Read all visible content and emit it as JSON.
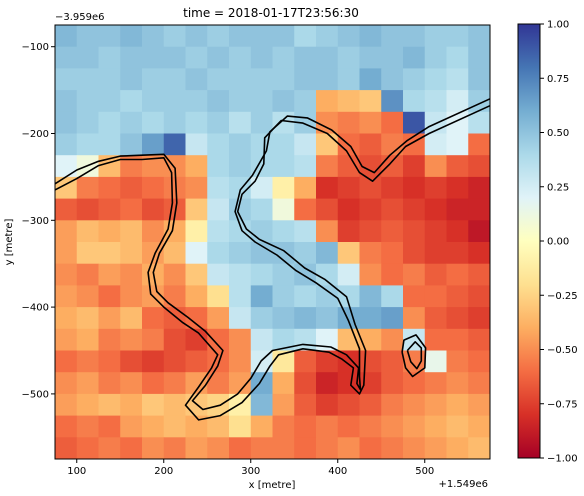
{
  "chart_data": {
    "type": "heatmap",
    "title": "time = 2018-01-17T23:56:30",
    "xlabel": "x [metre]",
    "ylabel": "y [metre]",
    "x_offset_label": "+1.549e6",
    "y_offset_label": "−3.959e6",
    "xlim": [
      75,
      575
    ],
    "ylim": [
      -575,
      -75
    ],
    "x_ticks": [
      100,
      200,
      300,
      400,
      500
    ],
    "y_ticks": [
      -100,
      -200,
      -300,
      -400,
      -500
    ],
    "x_origin": 75,
    "y_origin": -75,
    "cell_size": 25,
    "colorbar": {
      "cmap": "RdYlBu",
      "vmin": -1.0,
      "vmax": 1.0,
      "ticks": [
        -1.0,
        -0.75,
        -0.5,
        -0.25,
        0.0,
        0.25,
        0.5,
        0.75,
        1.0
      ],
      "tick_labels": [
        "−1.00",
        "−0.75",
        "−0.50",
        "−0.25",
        "0.00",
        "0.25",
        "0.50",
        "0.75",
        "1.00"
      ]
    },
    "values": [
      [
        0.55,
        0.5,
        0.5,
        0.55,
        0.5,
        0.45,
        0.5,
        0.45,
        0.5,
        0.5,
        0.5,
        0.4,
        0.45,
        0.5,
        0.55,
        0.5,
        0.5,
        0.45,
        0.45,
        0.5
      ],
      [
        0.5,
        0.5,
        0.45,
        0.5,
        0.5,
        0.5,
        0.45,
        0.5,
        0.45,
        0.5,
        0.45,
        0.5,
        0.5,
        0.45,
        0.5,
        0.5,
        0.55,
        0.45,
        0.4,
        0.5
      ],
      [
        0.45,
        0.45,
        0.45,
        0.5,
        0.45,
        0.45,
        0.5,
        0.45,
        0.45,
        0.45,
        0.45,
        0.5,
        0.5,
        0.45,
        0.6,
        0.5,
        0.45,
        0.4,
        0.35,
        0.5
      ],
      [
        0.5,
        0.45,
        0.45,
        0.4,
        0.45,
        0.45,
        0.45,
        0.5,
        0.45,
        0.45,
        0.5,
        0.45,
        -0.4,
        -0.35,
        -0.3,
        0.7,
        0.4,
        0.35,
        0.25,
        0.45
      ],
      [
        0.5,
        0.45,
        0.4,
        0.45,
        0.4,
        0.45,
        0.4,
        0.45,
        0.35,
        0.45,
        0.35,
        0.45,
        -0.5,
        -0.55,
        -0.5,
        -0.6,
        0.9,
        0.3,
        0.2,
        0.35
      ],
      [
        0.45,
        0.4,
        0.4,
        0.5,
        0.65,
        0.85,
        0.3,
        0.4,
        0.45,
        0.4,
        0.4,
        0.3,
        -0.3,
        -0.6,
        -0.65,
        -0.55,
        -0.6,
        0.25,
        0.2,
        -0.6
      ],
      [
        0.2,
        0.1,
        -0.35,
        -0.55,
        -0.5,
        -0.5,
        -0.4,
        0.4,
        0.45,
        0.4,
        0.4,
        0.35,
        -0.55,
        -0.65,
        -0.7,
        -0.65,
        -0.75,
        -0.5,
        -0.65,
        -0.7
      ],
      [
        -0.3,
        -0.55,
        -0.6,
        -0.65,
        -0.6,
        -0.55,
        -0.5,
        0.35,
        0.4,
        0.25,
        -0.1,
        -0.4,
        -0.8,
        -0.75,
        -0.7,
        -0.75,
        -0.8,
        -0.75,
        -0.8,
        -0.85
      ],
      [
        -0.65,
        -0.7,
        -0.65,
        -0.6,
        -0.7,
        -0.65,
        -0.3,
        0.3,
        0.45,
        0.4,
        0.1,
        -0.6,
        -0.7,
        -0.8,
        -0.75,
        -0.7,
        -0.75,
        -0.8,
        -0.85,
        -0.85
      ],
      [
        -0.45,
        -0.35,
        -0.4,
        -0.35,
        -0.5,
        -0.4,
        -0.1,
        0.35,
        0.4,
        0.45,
        0.4,
        0.35,
        -0.5,
        -0.75,
        -0.7,
        -0.65,
        -0.7,
        -0.75,
        -0.8,
        -0.9
      ],
      [
        -0.45,
        -0.3,
        -0.3,
        -0.35,
        -0.45,
        -0.35,
        0.2,
        0.4,
        0.45,
        0.5,
        0.5,
        0.45,
        0.55,
        -0.3,
        -0.55,
        -0.6,
        -0.7,
        -0.75,
        -0.75,
        -0.8
      ],
      [
        -0.5,
        -0.55,
        -0.45,
        -0.5,
        -0.4,
        -0.5,
        -0.3,
        0.3,
        0.35,
        0.4,
        0.45,
        0.5,
        0.4,
        0.25,
        -0.5,
        -0.6,
        -0.55,
        -0.65,
        -0.6,
        -0.65
      ],
      [
        -0.45,
        -0.5,
        -0.6,
        -0.5,
        -0.45,
        -0.55,
        -0.4,
        -0.2,
        0.35,
        0.6,
        0.45,
        0.4,
        0.45,
        0.4,
        0.55,
        0.4,
        -0.6,
        -0.6,
        -0.65,
        -0.7
      ],
      [
        -0.4,
        -0.35,
        -0.45,
        -0.35,
        -0.6,
        -0.65,
        -0.6,
        -0.45,
        0.3,
        0.45,
        0.5,
        0.55,
        0.5,
        0.6,
        0.6,
        0.65,
        -0.5,
        -0.65,
        -0.7,
        -0.75
      ],
      [
        -0.45,
        -0.4,
        -0.55,
        -0.5,
        -0.55,
        -0.7,
        -0.75,
        -0.6,
        -0.5,
        0.3,
        0.4,
        0.35,
        0.2,
        -0.35,
        -0.4,
        -0.5,
        0.3,
        -0.6,
        -0.6,
        -0.65
      ],
      [
        -0.6,
        -0.55,
        -0.6,
        -0.7,
        -0.75,
        -0.7,
        -0.65,
        -0.6,
        -0.5,
        0.25,
        -0.15,
        -0.65,
        -0.75,
        -0.8,
        -0.7,
        -0.65,
        -0.55,
        0.15,
        -0.55,
        -0.6
      ],
      [
        -0.5,
        -0.45,
        -0.55,
        -0.5,
        -0.6,
        -0.55,
        -0.45,
        -0.55,
        -0.45,
        0.6,
        -0.4,
        -0.7,
        -0.85,
        -0.8,
        -0.75,
        -0.65,
        -0.6,
        -0.55,
        -0.5,
        -0.55
      ],
      [
        -0.45,
        -0.4,
        -0.35,
        -0.4,
        -0.3,
        -0.35,
        -0.3,
        -0.25,
        -0.1,
        0.55,
        -0.45,
        -0.65,
        -0.75,
        -0.7,
        -0.65,
        -0.55,
        -0.5,
        -0.45,
        -0.4,
        -0.45
      ],
      [
        -0.6,
        -0.55,
        -0.6,
        -0.45,
        -0.4,
        -0.35,
        -0.4,
        -0.35,
        -0.2,
        -0.4,
        -0.55,
        -0.6,
        -0.55,
        -0.6,
        -0.55,
        -0.5,
        -0.45,
        -0.4,
        -0.35,
        -0.4
      ],
      [
        -0.65,
        -0.6,
        -0.55,
        -0.6,
        -0.5,
        -0.55,
        -0.45,
        -0.5,
        -0.6,
        -0.55,
        -0.55,
        -0.6,
        -0.55,
        -0.5,
        -0.6,
        -0.55,
        -0.5,
        -0.45,
        -0.4,
        -0.35
      ]
    ],
    "contours": [
      [
        [
          75,
          -265
        ],
        [
          100,
          -252
        ],
        [
          125,
          -237
        ],
        [
          150,
          -230
        ],
        [
          175,
          -230
        ],
        [
          200,
          -228
        ],
        [
          209,
          -245
        ],
        [
          210,
          -280
        ],
        [
          205,
          -310
        ],
        [
          190,
          -338
        ],
        [
          182,
          -360
        ],
        [
          185,
          -385
        ],
        [
          200,
          -400
        ],
        [
          222,
          -418
        ],
        [
          240,
          -430
        ],
        [
          262,
          -455
        ],
        [
          255,
          -470
        ],
        [
          240,
          -492
        ],
        [
          225,
          -513
        ],
        [
          240,
          -530
        ],
        [
          265,
          -525
        ],
        [
          290,
          -510
        ],
        [
          310,
          -488
        ],
        [
          322,
          -468
        ],
        [
          332,
          -455
        ],
        [
          360,
          -448
        ],
        [
          390,
          -452
        ],
        [
          405,
          -460
        ],
        [
          418,
          -470
        ],
        [
          415,
          -490
        ],
        [
          425,
          -500
        ],
        [
          430,
          -490
        ],
        [
          432,
          -450
        ],
        [
          420,
          -420
        ],
        [
          410,
          -388
        ],
        [
          385,
          -368
        ],
        [
          362,
          -355
        ],
        [
          338,
          -335
        ],
        [
          310,
          -322
        ],
        [
          295,
          -310
        ],
        [
          285,
          -290
        ],
        [
          290,
          -270
        ],
        [
          305,
          -255
        ],
        [
          315,
          -235
        ],
        [
          316,
          -205
        ],
        [
          335,
          -185
        ],
        [
          360,
          -188
        ],
        [
          388,
          -200
        ],
        [
          410,
          -220
        ],
        [
          425,
          -245
        ],
        [
          440,
          -255
        ],
        [
          460,
          -235
        ],
        [
          478,
          -215
        ],
        [
          505,
          -200
        ],
        [
          575,
          -168
        ]
      ],
      [
        [
          75,
          -258
        ],
        [
          100,
          -242
        ],
        [
          125,
          -232
        ],
        [
          150,
          -226
        ],
        [
          175,
          -225
        ],
        [
          200,
          -224
        ],
        [
          213,
          -240
        ],
        [
          215,
          -280
        ],
        [
          210,
          -312
        ],
        [
          195,
          -338
        ],
        [
          188,
          -360
        ],
        [
          192,
          -382
        ],
        [
          205,
          -395
        ],
        [
          228,
          -412
        ],
        [
          248,
          -428
        ],
        [
          268,
          -450
        ],
        [
          262,
          -468
        ],
        [
          248,
          -490
        ],
        [
          233,
          -508
        ],
        [
          245,
          -518
        ],
        [
          265,
          -513
        ],
        [
          285,
          -500
        ],
        [
          300,
          -482
        ],
        [
          312,
          -462
        ],
        [
          325,
          -450
        ],
        [
          360,
          -443
        ],
        [
          392,
          -446
        ],
        [
          410,
          -455
        ],
        [
          424,
          -470
        ],
        [
          422,
          -488
        ],
        [
          426,
          -495
        ],
        [
          425,
          -480
        ],
        [
          425,
          -448
        ],
        [
          412,
          -415
        ],
        [
          400,
          -390
        ],
        [
          375,
          -372
        ],
        [
          352,
          -358
        ],
        [
          330,
          -340
        ],
        [
          305,
          -325
        ],
        [
          290,
          -312
        ],
        [
          282,
          -290
        ],
        [
          288,
          -265
        ],
        [
          302,
          -248
        ],
        [
          318,
          -220
        ],
        [
          322,
          -198
        ],
        [
          342,
          -180
        ],
        [
          365,
          -182
        ],
        [
          393,
          -196
        ],
        [
          415,
          -215
        ],
        [
          428,
          -238
        ],
        [
          442,
          -245
        ],
        [
          460,
          -225
        ],
        [
          480,
          -208
        ],
        [
          505,
          -192
        ],
        [
          575,
          -160
        ]
      ],
      [
        [
          480,
          -450
        ],
        [
          484,
          -463
        ],
        [
          491,
          -471
        ],
        [
          496,
          -462
        ],
        [
          496,
          -447
        ],
        [
          489,
          -440
        ],
        [
          480,
          -450
        ]
      ],
      [
        [
          474,
          -452
        ],
        [
          478,
          -470
        ],
        [
          486,
          -480
        ],
        [
          500,
          -470
        ],
        [
          501,
          -447
        ],
        [
          490,
          -432
        ],
        [
          476,
          -438
        ],
        [
          474,
          -452
        ]
      ]
    ]
  }
}
